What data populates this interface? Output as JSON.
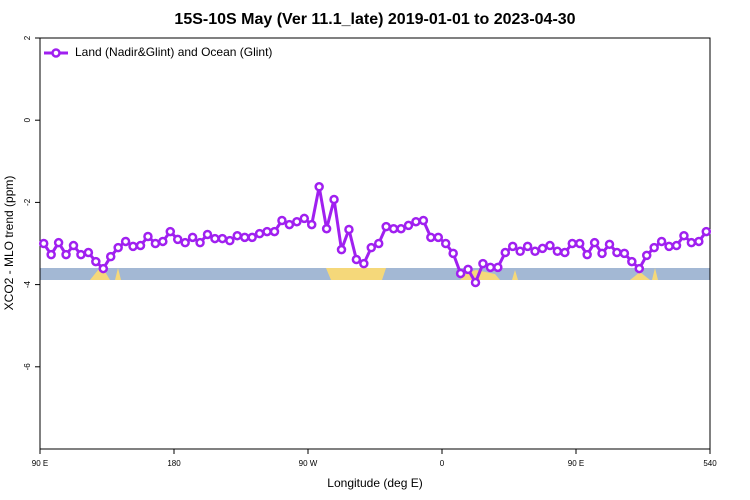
{
  "chart_data": {
    "type": "line",
    "title": "15S-10S May (Ver 11.1_late)   2019-01-01 to 2023-04-30",
    "x_label": "Longitude (deg E)",
    "y_label": "XCO2 - MLO trend (ppm)",
    "xlim": [
      90,
      540
    ],
    "xticks": [
      {
        "value": 90,
        "label": "90 E"
      },
      180,
      {
        "value": 270,
        "label": "90 W"
      },
      {
        "value": 360,
        "label": "0"
      },
      {
        "value": 450,
        "label": "90 E"
      },
      540
    ],
    "ylim": [
      -8,
      2
    ],
    "yticks": [
      2,
      0,
      -2,
      -4,
      -6
    ],
    "legend": "top-left",
    "x": [
      92.5,
      97.5,
      102.5,
      107.5,
      112.5,
      117.5,
      122.5,
      127.5,
      132.5,
      137.5,
      142.5,
      147.5,
      152.5,
      157.5,
      162.5,
      167.5,
      172.5,
      177.5,
      182.5,
      187.5,
      192.5,
      197.5,
      202.5,
      207.5,
      212.5,
      217.5,
      222.5,
      227.5,
      232.5,
      237.5,
      242.5,
      247.5,
      252.5,
      257.5,
      262.5,
      267.5,
      272.5,
      277.5,
      282.5,
      287.5,
      292.5,
      297.5,
      302.5,
      307.5,
      312.5,
      317.5,
      322.5,
      327.5,
      332.5,
      337.5,
      342.5,
      347.5,
      352.5,
      357.5,
      362.5,
      367.5,
      372.5,
      377.5,
      382.5,
      387.5,
      392.5,
      397.5,
      402.5,
      407.5,
      412.5,
      417.5,
      422.5,
      427.5,
      432.5,
      437.5,
      442.5,
      447.5,
      452.5,
      457.5,
      462.5,
      467.5,
      472.5,
      477.5,
      482.5,
      487.5,
      492.5,
      497.5,
      502.5,
      507.5,
      512.5,
      517.5,
      522.5,
      527.5,
      532.5,
      537.5
    ],
    "series": [
      {
        "name": "Land (Nadir&Glint) and Ocean (Glint)",
        "color": "#a020f0",
        "values": [
          -3.0,
          -3.27,
          -2.98,
          -3.27,
          -3.05,
          -3.27,
          -3.22,
          -3.44,
          -3.61,
          -3.32,
          -3.1,
          -2.95,
          -3.07,
          -3.05,
          -2.83,
          -3.0,
          -2.95,
          -2.71,
          -2.9,
          -2.98,
          -2.85,
          -2.98,
          -2.78,
          -2.88,
          -2.88,
          -2.93,
          -2.81,
          -2.85,
          -2.85,
          -2.76,
          -2.71,
          -2.71,
          -2.44,
          -2.54,
          -2.47,
          -2.39,
          -2.54,
          -1.62,
          -2.64,
          -1.93,
          -3.15,
          -2.66,
          -3.39,
          -3.49,
          -3.1,
          -3.0,
          -2.59,
          -2.64,
          -2.64,
          -2.56,
          -2.47,
          -2.44,
          -2.85,
          -2.85,
          -3.0,
          -3.24,
          -3.73,
          -3.63,
          -3.95,
          -3.49,
          -3.58,
          -3.58,
          -3.22,
          -3.07,
          -3.19,
          -3.07,
          -3.19,
          -3.12,
          -3.05,
          -3.19,
          -3.22,
          -3.0,
          -3.0,
          -3.27,
          -2.98,
          -3.24,
          -3.02,
          -3.22,
          -3.24,
          -3.44,
          -3.61,
          -3.29,
          -3.1,
          -2.95,
          -3.07,
          -3.05,
          -2.81,
          -2.98,
          -2.95,
          -2.71
        ]
      }
    ]
  }
}
